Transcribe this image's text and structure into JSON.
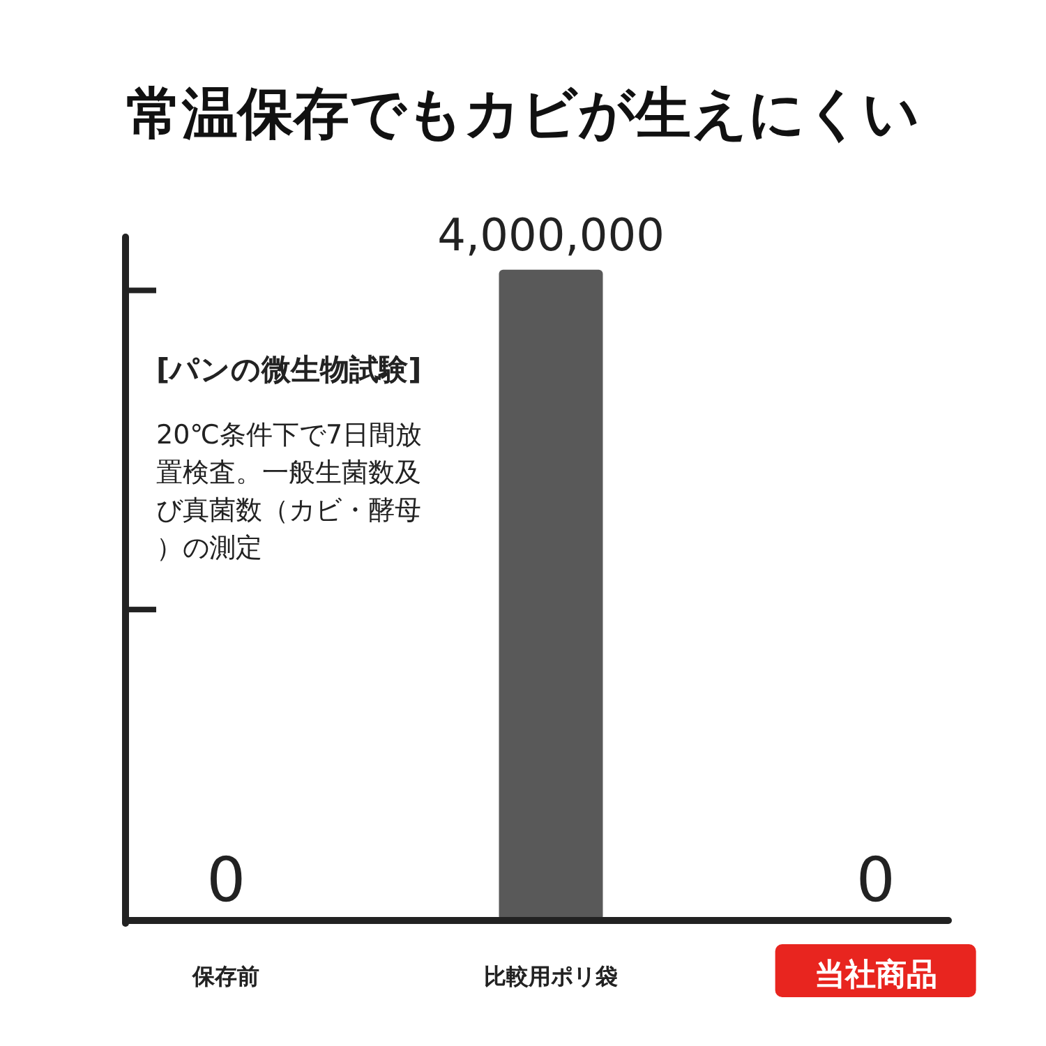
{
  "chart_data": {
    "type": "bar",
    "title": "常温保存でもカビが生えにくい",
    "categories": [
      "保存前",
      "比較用ポリ袋",
      "当社商品"
    ],
    "values": [
      0,
      4000000,
      0
    ],
    "value_labels": [
      "0",
      "4,000,000",
      "0"
    ],
    "color": "#595959",
    "ylim": [
      0,
      4200000
    ],
    "annotations": [
      "[パンの微生物試験]",
      "20℃条件下で7日間放置検査。一般生菌数及び真菌数（カビ・酵母）の測定"
    ],
    "grid": false
  }
}
